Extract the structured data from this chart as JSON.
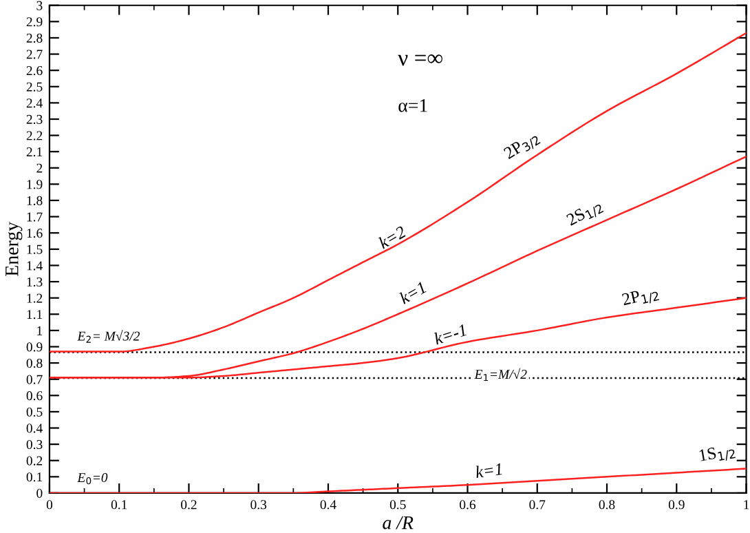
{
  "chart_data": {
    "type": "line",
    "xlabel": "a /R",
    "ylabel": "Energy",
    "xlim": [
      0,
      1
    ],
    "ylim": [
      0,
      3
    ],
    "xticks": [
      0,
      0.1,
      0.2,
      0.3,
      0.4,
      0.5,
      0.6,
      0.7,
      0.8,
      0.9,
      1
    ],
    "yticks": [
      0,
      0.1,
      0.2,
      0.3,
      0.4,
      0.5,
      0.6,
      0.7,
      0.8,
      0.9,
      1,
      1.1,
      1.2,
      1.3,
      1.4,
      1.5,
      1.6,
      1.7,
      1.8,
      1.9,
      2,
      2.1,
      2.2,
      2.3,
      2.4,
      2.5,
      2.6,
      2.7,
      2.8,
      2.9,
      3
    ],
    "grid": false,
    "legend": false,
    "marker": "none",
    "line_style": "solid",
    "x": [
      0,
      0.1,
      0.15,
      0.2,
      0.25,
      0.3,
      0.35,
      0.4,
      0.45,
      0.5,
      0.6,
      0.7,
      0.8,
      0.9,
      1
    ],
    "series": [
      {
        "color": "#ff2020",
        "values": [
          0.87,
          0.87,
          0.9,
          0.95,
          1.02,
          1.11,
          1.2,
          1.31,
          1.42,
          1.53,
          1.79,
          2.08,
          2.35,
          2.58,
          2.83
        ]
      },
      {
        "color": "#ff2020",
        "values": [
          0.71,
          0.71,
          0.71,
          0.72,
          0.76,
          0.81,
          0.86,
          0.93,
          1.01,
          1.1,
          1.29,
          1.49,
          1.68,
          1.87,
          2.07
        ]
      },
      {
        "color": "#ff2020",
        "values": [
          0.71,
          0.71,
          0.71,
          0.71,
          0.72,
          0.74,
          0.76,
          0.78,
          0.8,
          0.83,
          0.93,
          1.0,
          1.08,
          1.14,
          1.2
        ]
      },
      {
        "color": "#ff2020",
        "values": [
          0,
          0,
          0,
          0,
          0,
          0,
          0,
          0.01,
          0.02,
          0.03,
          0.05,
          0.075,
          0.1,
          0.125,
          0.15
        ]
      }
    ],
    "ref_lines": [
      {
        "axis": "y",
        "value": 0.866,
        "color": "#000000",
        "line_style": "dotted"
      },
      {
        "axis": "y",
        "value": 0.707,
        "color": "#000000",
        "line_style": "dotted"
      }
    ],
    "annotations": [
      "ν =∞",
      "α=1",
      "k=2",
      "2P$_{3/2}$",
      "k=1",
      "2S$_{1/2}$",
      "k=-1",
      "2P$_{1/2}$",
      "k=1",
      "1S$_{1/2}$",
      "E$_{2}$= M√3/2",
      "E$_{1}$=M/√2",
      "E$_{0}$=0"
    ]
  }
}
